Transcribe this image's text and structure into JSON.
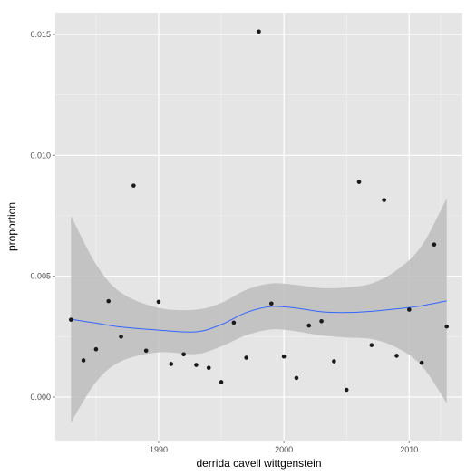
{
  "chart_data": {
    "type": "scatter",
    "title": "",
    "xlabel": "derrida cavell wittgenstein",
    "ylabel": "proportion",
    "xlim": [
      1981.75,
      2014.25
    ],
    "ylim": [
      -0.0018,
      0.0159
    ],
    "x_ticks": [
      {
        "value": 1990,
        "label": "1990"
      },
      {
        "value": 2000,
        "label": "2000"
      },
      {
        "value": 2010,
        "label": "2010"
      }
    ],
    "y_ticks": [
      {
        "value": 0.0,
        "label": "0.000"
      },
      {
        "value": 0.005,
        "label": "0.005"
      },
      {
        "value": 0.01,
        "label": "0.010"
      },
      {
        "value": 0.015,
        "label": "0.015"
      }
    ],
    "grid": true,
    "colors": {
      "panel": "#e5e5e5",
      "grid_major": "#ffffff",
      "grid_minor": "#f2f2f2",
      "points": "#1a1a1a",
      "smooth_line": "#3366ff",
      "ribbon": "#bdbdbd"
    },
    "points": [
      {
        "x": 1983,
        "y": 0.0032
      },
      {
        "x": 1984,
        "y": 0.00152
      },
      {
        "x": 1985,
        "y": 0.00198
      },
      {
        "x": 1986,
        "y": 0.00397
      },
      {
        "x": 1987,
        "y": 0.0025
      },
      {
        "x": 1988,
        "y": 0.00875
      },
      {
        "x": 1989,
        "y": 0.00192
      },
      {
        "x": 1990,
        "y": 0.00394
      },
      {
        "x": 1991,
        "y": 0.00137
      },
      {
        "x": 1992,
        "y": 0.00177
      },
      {
        "x": 1993,
        "y": 0.00133
      },
      {
        "x": 1994,
        "y": 0.00121
      },
      {
        "x": 1995,
        "y": 0.00062
      },
      {
        "x": 1996,
        "y": 0.00308
      },
      {
        "x": 1997,
        "y": 0.00163
      },
      {
        "x": 1998,
        "y": 0.01512
      },
      {
        "x": 1999,
        "y": 0.00387
      },
      {
        "x": 2000,
        "y": 0.00168
      },
      {
        "x": 2001,
        "y": 0.00079
      },
      {
        "x": 2002,
        "y": 0.00296
      },
      {
        "x": 2003,
        "y": 0.00314
      },
      {
        "x": 2004,
        "y": 0.00148
      },
      {
        "x": 2005,
        "y": 0.0003
      },
      {
        "x": 2006,
        "y": 0.0089
      },
      {
        "x": 2007,
        "y": 0.00215
      },
      {
        "x": 2008,
        "y": 0.00815
      },
      {
        "x": 2009,
        "y": 0.00171
      },
      {
        "x": 2010,
        "y": 0.00362
      },
      {
        "x": 2011,
        "y": 0.00142
      },
      {
        "x": 2012,
        "y": 0.00631
      },
      {
        "x": 2013,
        "y": 0.00292
      }
    ],
    "smooth": {
      "x": [
        1983,
        1985,
        1987,
        1990,
        1993,
        1995,
        1997,
        1999,
        2001,
        2003,
        2005,
        2007,
        2009,
        2011,
        2013
      ],
      "y": [
        0.00322,
        0.00306,
        0.0029,
        0.00277,
        0.0027,
        0.003,
        0.0035,
        0.00375,
        0.00368,
        0.00353,
        0.0035,
        0.00355,
        0.00365,
        0.00378,
        0.00398
      ],
      "lower": [
        -0.00105,
        0.00062,
        0.00148,
        0.00185,
        0.00178,
        0.0021,
        0.00256,
        0.0028,
        0.00272,
        0.00255,
        0.00246,
        0.0024,
        0.00205,
        0.0013,
        -0.00025
      ],
      "upper": [
        0.0075,
        0.0055,
        0.00432,
        0.00369,
        0.00362,
        0.0039,
        0.00444,
        0.0047,
        0.00464,
        0.00451,
        0.00454,
        0.0047,
        0.00525,
        0.00626,
        0.00822
      ]
    }
  }
}
